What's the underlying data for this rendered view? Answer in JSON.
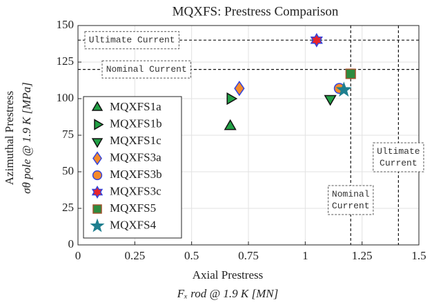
{
  "chart_data": {
    "type": "scatter",
    "title": "MQXFS: Prestress Comparison",
    "x_label": [
      "Axial Prestress",
      "Fₓ rod @ 1.9 K [MN]"
    ],
    "y_label": [
      "Azimuthal Prestress",
      "σθ pole @ 1.9 K [MPa]"
    ],
    "xlim": [
      0,
      1.5
    ],
    "ylim": [
      0,
      150
    ],
    "xticks": [
      0,
      0.25,
      0.5,
      0.75,
      1,
      1.25,
      1.5
    ],
    "yticks": [
      0,
      25,
      50,
      75,
      100,
      125,
      150
    ],
    "grid": true,
    "legend": "lower left",
    "series": [
      {
        "name": "MQXFS1a",
        "marker": "triangle-up",
        "color": "#22a045",
        "edgecolor": "#111111",
        "x": [
          0.67
        ],
        "values": [
          81
        ]
      },
      {
        "name": "MQXFS1b",
        "marker": "triangle-right",
        "color": "#22a045",
        "edgecolor": "#111111",
        "x": [
          0.67
        ],
        "values": [
          100
        ]
      },
      {
        "name": "MQXFS1c",
        "marker": "triangle-down",
        "color": "#22a045",
        "edgecolor": "#111111",
        "x": [
          1.11
        ],
        "values": [
          100
        ]
      },
      {
        "name": "MQXFS3a",
        "marker": "diamond",
        "color": "#f58a2a",
        "edgecolor": "#3344dd",
        "x": [
          0.71
        ],
        "values": [
          107
        ]
      },
      {
        "name": "MQXFS3b",
        "marker": "circle",
        "color": "#f58a2a",
        "edgecolor": "#3344dd",
        "x": [
          1.15
        ],
        "values": [
          107
        ]
      },
      {
        "name": "MQXFS3c",
        "marker": "hexagram",
        "color": "#e8252a",
        "edgecolor": "#3344dd",
        "x": [
          1.05
        ],
        "values": [
          140
        ]
      },
      {
        "name": "MQXFS5",
        "marker": "square",
        "color": "#2e8b3e",
        "edgecolor": "#a0522d",
        "x": [
          1.2
        ],
        "values": [
          117
        ]
      },
      {
        "name": "MQXFS4",
        "marker": "star",
        "color": "#1f7f8f",
        "edgecolor": "#1f7f8f",
        "x": [
          1.17
        ],
        "values": [
          106
        ]
      }
    ],
    "reference_lines": [
      {
        "axis": "y",
        "value": 140,
        "label": [
          "Ultimate Current"
        ]
      },
      {
        "axis": "y",
        "value": 120,
        "label": [
          "Nominal Current"
        ]
      },
      {
        "axis": "x",
        "value": 1.2,
        "label": [
          "Nominal",
          "Current"
        ]
      },
      {
        "axis": "x",
        "value": 1.41,
        "label": [
          "Ultimate",
          "Current"
        ]
      }
    ]
  }
}
